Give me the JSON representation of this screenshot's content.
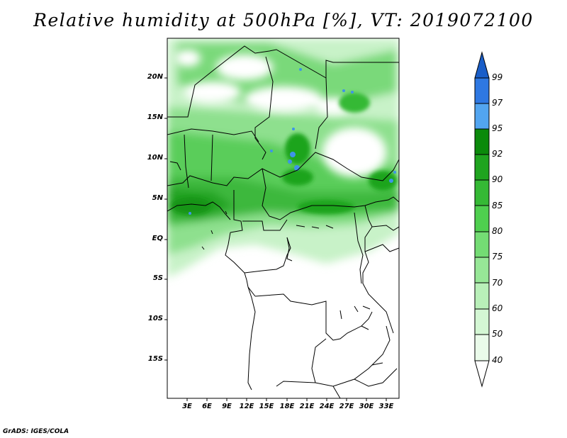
{
  "title": "Relative humidity at 500hPa [%], VT: 2019072100",
  "credit": "GrADS: IGES/COLA",
  "map": {
    "lat_labels": [
      "20N",
      "15N",
      "10N",
      "5N",
      "EQ",
      "5S",
      "10S",
      "15S"
    ],
    "lon_labels": [
      "3E",
      "6E",
      "9E",
      "12E",
      "15E",
      "18E",
      "21E",
      "24E",
      "27E",
      "30E",
      "33E"
    ]
  },
  "colorbar": {
    "labels": [
      "99",
      "97",
      "95",
      "92",
      "90",
      "85",
      "80",
      "75",
      "70",
      "60",
      "50",
      "40"
    ],
    "colors": [
      "#1a5ec8",
      "#2e78e2",
      "#52a5f0",
      "#0b8a0b",
      "#1fa41f",
      "#35b935",
      "#4fcf4f",
      "#74dc74",
      "#97e797",
      "#b9f0b9",
      "#d4f7d4",
      "#eafbea"
    ]
  }
}
